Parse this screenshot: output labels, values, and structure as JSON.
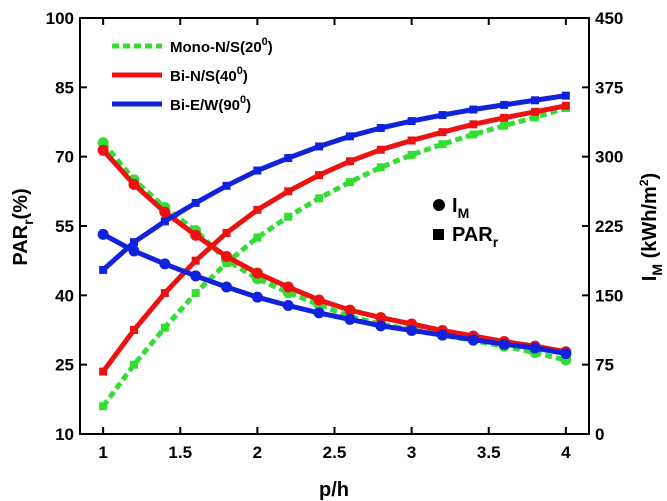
{
  "chart_data": {
    "type": "line",
    "xlabel": "p/h",
    "ylabel_left": {
      "main": "PAR",
      "sub": "r",
      "suffix": "(%)"
    },
    "ylabel_right": {
      "main": "I",
      "sub": "M",
      "suffix1": " (kWh/m",
      "sup": "2",
      "suffix2": ")"
    },
    "xlim": [
      0.85,
      4.15
    ],
    "ylim_left": [
      10,
      100
    ],
    "ylim_right": [
      0,
      450
    ],
    "x_ticks": [
      1,
      1.5,
      2,
      2.5,
      3,
      3.5,
      4
    ],
    "x_tick_labels": [
      "1",
      "1.5",
      "2",
      "2.5",
      "3",
      "3.5",
      "4"
    ],
    "y_ticks_left": [
      10,
      25,
      40,
      55,
      70,
      85,
      100
    ],
    "y_tick_labels_left": [
      "10",
      "25",
      "40",
      "55",
      "70",
      "85",
      "100"
    ],
    "y_ticks_right": [
      0,
      75,
      150,
      225,
      300,
      375,
      450
    ],
    "y_tick_labels_right": [
      "0",
      "75",
      "150",
      "225",
      "300",
      "375",
      "450"
    ],
    "x": [
      1,
      1.2,
      1.4,
      1.6,
      1.8,
      2,
      2.2,
      2.4,
      2.6,
      2.8,
      3,
      3.2,
      3.4,
      3.6,
      3.8,
      4
    ],
    "series": [
      {
        "name": "Mono-N/S(20",
        "sup": "0",
        "close": ")",
        "color": "#33dd33",
        "dashed": true,
        "par_values": [
          16,
          25,
          33,
          40.5,
          47,
          52.5,
          57,
          61,
          64.5,
          67.7,
          70.4,
          72.7,
          74.8,
          76.7,
          78.5,
          80.5
        ],
        "im_values": [
          315,
          275,
          245,
          220,
          188,
          168,
          153,
          140,
          127,
          119,
          113,
          107,
          101,
          95,
          88,
          80
        ]
      },
      {
        "name": "Bi-N/S(40",
        "sup": "0",
        "close": ")",
        "color": "#ee1111",
        "dashed": false,
        "par_values": [
          23.5,
          32.5,
          40.5,
          47.5,
          53.5,
          58.5,
          62.5,
          66,
          69,
          71.5,
          73.5,
          75.3,
          77,
          78.4,
          79.7,
          81
        ],
        "im_values": [
          307,
          270,
          240,
          215,
          192,
          174,
          159,
          145,
          134,
          126,
          119,
          112,
          106,
          100,
          95,
          89
        ]
      },
      {
        "name": "Bi-E/W(90",
        "sup": "0",
        "close": ")",
        "color": "#1122dd",
        "dashed": false,
        "par_values": [
          45.5,
          51.5,
          56,
          60,
          63.7,
          67,
          69.7,
          72.2,
          74.4,
          76.2,
          77.7,
          79,
          80.2,
          81.2,
          82.2,
          83.2
        ],
        "im_values": [
          216,
          198,
          184,
          171,
          159,
          148,
          139,
          131,
          124,
          117,
          112,
          107,
          102,
          97,
          93,
          87
        ]
      }
    ],
    "symbol_legend": [
      {
        "shape": "circle",
        "label_main": "I",
        "label_sub": "M"
      },
      {
        "shape": "square",
        "label_main": "PAR",
        "label_sub": "r"
      }
    ]
  }
}
